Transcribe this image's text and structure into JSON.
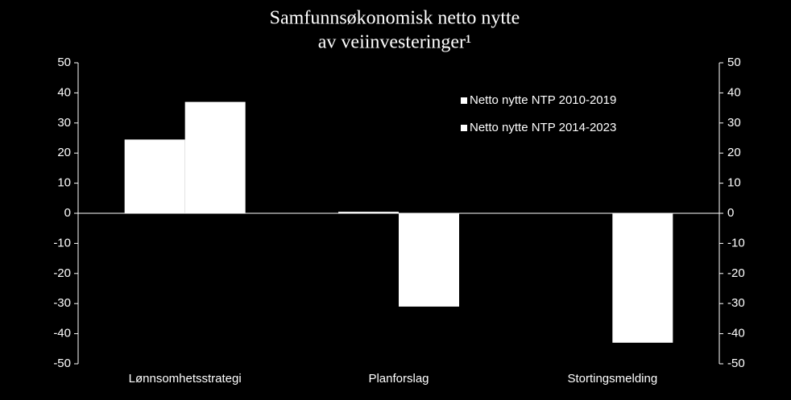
{
  "chart_data": {
    "type": "bar",
    "title": [
      "Samfunnsøkonomisk netto nytte",
      "av veiinvesteringer¹"
    ],
    "categories": [
      "Lønnsomhetsstrategi",
      "Planforslag",
      "Stortingsmelding"
    ],
    "series": [
      {
        "name": "Netto nytte NTP 2010-2019",
        "color": "#ffffff",
        "values": [
          24.5,
          0.5,
          null
        ]
      },
      {
        "name": "Netto nytte NTP 2014-2023",
        "color": "#ffffff",
        "values": [
          37,
          -31,
          -43
        ]
      }
    ],
    "ylim": [
      -50,
      50
    ],
    "yticks": [
      -50,
      -40,
      -30,
      -20,
      -10,
      0,
      10,
      20,
      30,
      40,
      50
    ],
    "y2lim": [
      -50,
      50
    ],
    "y2ticks": [
      -50,
      -40,
      -30,
      -20,
      -10,
      0,
      10,
      20,
      30,
      40,
      50
    ],
    "legend": "upper right",
    "background": "#000000"
  }
}
